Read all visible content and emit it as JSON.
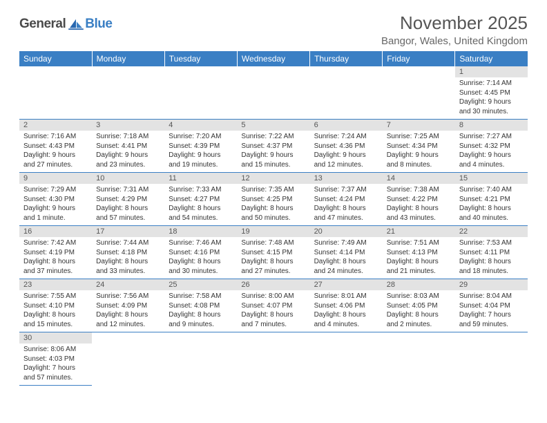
{
  "logo": {
    "general": "General",
    "blue": "Blue"
  },
  "title": "November 2025",
  "location": "Bangor, Wales, United Kingdom",
  "colors": {
    "header_bg": "#3a7fc4",
    "header_text": "#ffffff",
    "daynum_bg": "#e3e3e3",
    "daynum_text": "#555555",
    "border": "#3a7fc4",
    "body_text": "#333333",
    "title_text": "#555555",
    "location_text": "#666666"
  },
  "typography": {
    "title_fontsize": 26,
    "location_fontsize": 15,
    "dayheader_fontsize": 12,
    "daynum_fontsize": 11,
    "cell_fontsize": 10
  },
  "day_headers": [
    "Sunday",
    "Monday",
    "Tuesday",
    "Wednesday",
    "Thursday",
    "Friday",
    "Saturday"
  ],
  "weeks": [
    [
      null,
      null,
      null,
      null,
      null,
      null,
      {
        "n": "1",
        "sunrise": "Sunrise: 7:14 AM",
        "sunset": "Sunset: 4:45 PM",
        "daylight": "Daylight: 9 hours and 30 minutes."
      }
    ],
    [
      {
        "n": "2",
        "sunrise": "Sunrise: 7:16 AM",
        "sunset": "Sunset: 4:43 PM",
        "daylight": "Daylight: 9 hours and 27 minutes."
      },
      {
        "n": "3",
        "sunrise": "Sunrise: 7:18 AM",
        "sunset": "Sunset: 4:41 PM",
        "daylight": "Daylight: 9 hours and 23 minutes."
      },
      {
        "n": "4",
        "sunrise": "Sunrise: 7:20 AM",
        "sunset": "Sunset: 4:39 PM",
        "daylight": "Daylight: 9 hours and 19 minutes."
      },
      {
        "n": "5",
        "sunrise": "Sunrise: 7:22 AM",
        "sunset": "Sunset: 4:37 PM",
        "daylight": "Daylight: 9 hours and 15 minutes."
      },
      {
        "n": "6",
        "sunrise": "Sunrise: 7:24 AM",
        "sunset": "Sunset: 4:36 PM",
        "daylight": "Daylight: 9 hours and 12 minutes."
      },
      {
        "n": "7",
        "sunrise": "Sunrise: 7:25 AM",
        "sunset": "Sunset: 4:34 PM",
        "daylight": "Daylight: 9 hours and 8 minutes."
      },
      {
        "n": "8",
        "sunrise": "Sunrise: 7:27 AM",
        "sunset": "Sunset: 4:32 PM",
        "daylight": "Daylight: 9 hours and 4 minutes."
      }
    ],
    [
      {
        "n": "9",
        "sunrise": "Sunrise: 7:29 AM",
        "sunset": "Sunset: 4:30 PM",
        "daylight": "Daylight: 9 hours and 1 minute."
      },
      {
        "n": "10",
        "sunrise": "Sunrise: 7:31 AM",
        "sunset": "Sunset: 4:29 PM",
        "daylight": "Daylight: 8 hours and 57 minutes."
      },
      {
        "n": "11",
        "sunrise": "Sunrise: 7:33 AM",
        "sunset": "Sunset: 4:27 PM",
        "daylight": "Daylight: 8 hours and 54 minutes."
      },
      {
        "n": "12",
        "sunrise": "Sunrise: 7:35 AM",
        "sunset": "Sunset: 4:25 PM",
        "daylight": "Daylight: 8 hours and 50 minutes."
      },
      {
        "n": "13",
        "sunrise": "Sunrise: 7:37 AM",
        "sunset": "Sunset: 4:24 PM",
        "daylight": "Daylight: 8 hours and 47 minutes."
      },
      {
        "n": "14",
        "sunrise": "Sunrise: 7:38 AM",
        "sunset": "Sunset: 4:22 PM",
        "daylight": "Daylight: 8 hours and 43 minutes."
      },
      {
        "n": "15",
        "sunrise": "Sunrise: 7:40 AM",
        "sunset": "Sunset: 4:21 PM",
        "daylight": "Daylight: 8 hours and 40 minutes."
      }
    ],
    [
      {
        "n": "16",
        "sunrise": "Sunrise: 7:42 AM",
        "sunset": "Sunset: 4:19 PM",
        "daylight": "Daylight: 8 hours and 37 minutes."
      },
      {
        "n": "17",
        "sunrise": "Sunrise: 7:44 AM",
        "sunset": "Sunset: 4:18 PM",
        "daylight": "Daylight: 8 hours and 33 minutes."
      },
      {
        "n": "18",
        "sunrise": "Sunrise: 7:46 AM",
        "sunset": "Sunset: 4:16 PM",
        "daylight": "Daylight: 8 hours and 30 minutes."
      },
      {
        "n": "19",
        "sunrise": "Sunrise: 7:48 AM",
        "sunset": "Sunset: 4:15 PM",
        "daylight": "Daylight: 8 hours and 27 minutes."
      },
      {
        "n": "20",
        "sunrise": "Sunrise: 7:49 AM",
        "sunset": "Sunset: 4:14 PM",
        "daylight": "Daylight: 8 hours and 24 minutes."
      },
      {
        "n": "21",
        "sunrise": "Sunrise: 7:51 AM",
        "sunset": "Sunset: 4:13 PM",
        "daylight": "Daylight: 8 hours and 21 minutes."
      },
      {
        "n": "22",
        "sunrise": "Sunrise: 7:53 AM",
        "sunset": "Sunset: 4:11 PM",
        "daylight": "Daylight: 8 hours and 18 minutes."
      }
    ],
    [
      {
        "n": "23",
        "sunrise": "Sunrise: 7:55 AM",
        "sunset": "Sunset: 4:10 PM",
        "daylight": "Daylight: 8 hours and 15 minutes."
      },
      {
        "n": "24",
        "sunrise": "Sunrise: 7:56 AM",
        "sunset": "Sunset: 4:09 PM",
        "daylight": "Daylight: 8 hours and 12 minutes."
      },
      {
        "n": "25",
        "sunrise": "Sunrise: 7:58 AM",
        "sunset": "Sunset: 4:08 PM",
        "daylight": "Daylight: 8 hours and 9 minutes."
      },
      {
        "n": "26",
        "sunrise": "Sunrise: 8:00 AM",
        "sunset": "Sunset: 4:07 PM",
        "daylight": "Daylight: 8 hours and 7 minutes."
      },
      {
        "n": "27",
        "sunrise": "Sunrise: 8:01 AM",
        "sunset": "Sunset: 4:06 PM",
        "daylight": "Daylight: 8 hours and 4 minutes."
      },
      {
        "n": "28",
        "sunrise": "Sunrise: 8:03 AM",
        "sunset": "Sunset: 4:05 PM",
        "daylight": "Daylight: 8 hours and 2 minutes."
      },
      {
        "n": "29",
        "sunrise": "Sunrise: 8:04 AM",
        "sunset": "Sunset: 4:04 PM",
        "daylight": "Daylight: 7 hours and 59 minutes."
      }
    ],
    [
      {
        "n": "30",
        "sunrise": "Sunrise: 8:06 AM",
        "sunset": "Sunset: 4:03 PM",
        "daylight": "Daylight: 7 hours and 57 minutes."
      },
      null,
      null,
      null,
      null,
      null,
      null
    ]
  ]
}
